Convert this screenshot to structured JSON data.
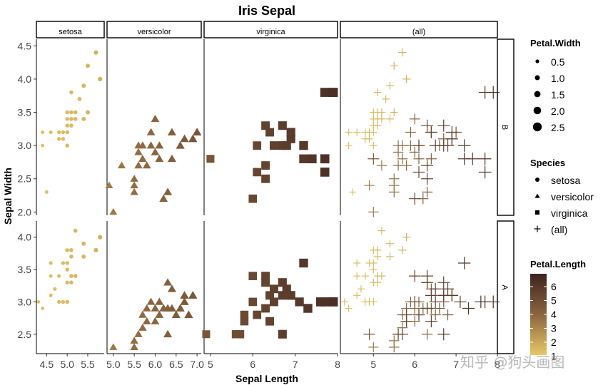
{
  "chart_data": {
    "type": "scatter",
    "title": "Iris Sepal",
    "xlabel": "Sepal Length",
    "ylabel": "Sepal Width",
    "facet_columns": [
      "setosa",
      "versicolor",
      "virginica",
      "(all)"
    ],
    "facet_rows": [
      "B",
      "A"
    ],
    "panels": [
      {
        "col": "setosa",
        "xlim": [
          4.25,
          5.9
        ],
        "xticks": [
          4.5,
          5.0,
          5.5
        ],
        "ytop": [
          2.0,
          4.5
        ],
        "ybottom": [
          2.2,
          4.2
        ]
      },
      {
        "col": "versicolor",
        "xlim": [
          4.85,
          7.1
        ],
        "xticks": [
          5.0,
          5.5,
          6.0,
          6.5,
          7.0
        ]
      },
      {
        "col": "virginica",
        "xlim": [
          4.85,
          8.0
        ],
        "xticks": [
          5,
          6,
          7,
          8
        ]
      },
      {
        "col": "(all)",
        "xlim": [
          4.2,
          8.0
        ],
        "xticks": [
          5,
          6,
          7,
          8
        ]
      }
    ],
    "row_y": {
      "B": {
        "ylim": [
          1.95,
          4.6
        ],
        "yticks": [
          2.0,
          2.5,
          3.0,
          3.5,
          4.0,
          4.5
        ]
      },
      "A": {
        "ylim": [
          2.2,
          4.25
        ],
        "yticks": [
          2.5,
          3.0,
          3.5,
          4.0
        ]
      }
    },
    "series": [
      {
        "name": "setosa",
        "row": "B",
        "points": [
          [
            4.4,
            3.0
          ],
          [
            4.5,
            2.3
          ],
          [
            4.4,
            3.2
          ],
          [
            4.6,
            3.2
          ],
          [
            4.8,
            3.1
          ],
          [
            4.8,
            3.2
          ],
          [
            4.9,
            3.1
          ],
          [
            4.9,
            3.2
          ],
          [
            5.0,
            3.0
          ],
          [
            5.0,
            3.3
          ],
          [
            5.0,
            3.4
          ],
          [
            5.0,
            3.5
          ],
          [
            5.0,
            3.2
          ],
          [
            5.1,
            3.3
          ],
          [
            5.1,
            3.4
          ],
          [
            5.1,
            3.5
          ],
          [
            5.1,
            3.8
          ],
          [
            5.2,
            3.4
          ],
          [
            5.2,
            3.5
          ],
          [
            5.3,
            3.7
          ],
          [
            5.4,
            3.4
          ],
          [
            5.4,
            3.9
          ],
          [
            5.5,
            3.5
          ],
          [
            5.5,
            4.2
          ],
          [
            5.7,
            4.4
          ],
          [
            5.8,
            4.0
          ]
        ]
      },
      {
        "name": "setosa",
        "row": "A",
        "points": [
          [
            4.3,
            3.0
          ],
          [
            4.4,
            2.9
          ],
          [
            4.6,
            3.1
          ],
          [
            4.6,
            3.4
          ],
          [
            4.6,
            3.6
          ],
          [
            4.7,
            3.2
          ],
          [
            4.8,
            3.0
          ],
          [
            4.8,
            3.4
          ],
          [
            4.9,
            3.0
          ],
          [
            4.9,
            3.6
          ],
          [
            5.0,
            3.0
          ],
          [
            5.0,
            3.3
          ],
          [
            5.0,
            3.5
          ],
          [
            5.0,
            3.6
          ],
          [
            5.0,
            3.8
          ],
          [
            5.1,
            3.3
          ],
          [
            5.1,
            3.4
          ],
          [
            5.1,
            3.7
          ],
          [
            5.1,
            3.8
          ],
          [
            5.2,
            3.4
          ],
          [
            5.2,
            4.1
          ],
          [
            5.4,
            3.7
          ],
          [
            5.4,
            3.9
          ],
          [
            5.7,
            3.8
          ],
          [
            5.8,
            4.0
          ]
        ]
      },
      {
        "name": "versicolor",
        "row": "B",
        "points": [
          [
            4.9,
            2.4
          ],
          [
            5.0,
            2.0
          ],
          [
            5.2,
            2.7
          ],
          [
            5.5,
            2.3
          ],
          [
            5.5,
            2.4
          ],
          [
            5.5,
            2.5
          ],
          [
            5.6,
            2.7
          ],
          [
            5.6,
            2.9
          ],
          [
            5.6,
            3.0
          ],
          [
            5.7,
            2.8
          ],
          [
            5.7,
            3.0
          ],
          [
            5.8,
            2.7
          ],
          [
            5.9,
            3.0
          ],
          [
            5.9,
            3.2
          ],
          [
            6.0,
            2.9
          ],
          [
            6.0,
            3.4
          ],
          [
            6.1,
            2.8
          ],
          [
            6.1,
            3.0
          ],
          [
            6.2,
            2.2
          ],
          [
            6.3,
            2.3
          ],
          [
            6.4,
            2.8
          ],
          [
            6.4,
            3.2
          ],
          [
            6.6,
            3.0
          ],
          [
            6.7,
            3.1
          ],
          [
            6.9,
            3.1
          ],
          [
            7.0,
            3.2
          ]
        ]
      },
      {
        "name": "versicolor",
        "row": "A",
        "points": [
          [
            5.0,
            2.3
          ],
          [
            5.5,
            2.3
          ],
          [
            5.5,
            2.4
          ],
          [
            5.6,
            2.5
          ],
          [
            5.7,
            2.6
          ],
          [
            5.7,
            2.8
          ],
          [
            5.8,
            2.7
          ],
          [
            5.8,
            2.9
          ],
          [
            5.9,
            3.0
          ],
          [
            6.0,
            2.7
          ],
          [
            6.0,
            2.9
          ],
          [
            6.1,
            2.8
          ],
          [
            6.1,
            3.0
          ],
          [
            6.2,
            2.9
          ],
          [
            6.3,
            2.5
          ],
          [
            6.3,
            2.9
          ],
          [
            6.3,
            3.3
          ],
          [
            6.4,
            2.9
          ],
          [
            6.4,
            3.2
          ],
          [
            6.5,
            2.8
          ],
          [
            6.6,
            2.9
          ],
          [
            6.7,
            3.0
          ],
          [
            6.7,
            3.1
          ],
          [
            6.8,
            2.8
          ],
          [
            6.9,
            3.1
          ]
        ]
      },
      {
        "name": "virginica",
        "row": "B",
        "points": [
          [
            6.0,
            2.2
          ],
          [
            6.1,
            2.6
          ],
          [
            6.1,
            3.0
          ],
          [
            6.3,
            2.5
          ],
          [
            6.3,
            2.7
          ],
          [
            6.3,
            3.3
          ],
          [
            6.4,
            3.2
          ],
          [
            6.5,
            3.0
          ],
          [
            6.7,
            3.0
          ],
          [
            6.7,
            3.3
          ],
          [
            6.8,
            3.0
          ],
          [
            6.9,
            3.1
          ],
          [
            6.9,
            3.2
          ],
          [
            7.2,
            2.8
          ],
          [
            7.2,
            3.0
          ],
          [
            7.4,
            2.8
          ],
          [
            7.7,
            2.6
          ],
          [
            7.7,
            2.8
          ],
          [
            7.7,
            3.8
          ],
          [
            7.9,
            3.8
          ],
          [
            5.0,
            2.8
          ]
        ]
      },
      {
        "name": "virginica",
        "row": "A",
        "points": [
          [
            4.9,
            2.5
          ],
          [
            5.6,
            2.5
          ],
          [
            5.8,
            2.7
          ],
          [
            5.8,
            2.8
          ],
          [
            6.0,
            3.0
          ],
          [
            6.1,
            2.8
          ],
          [
            6.3,
            2.9
          ],
          [
            6.3,
            3.3
          ],
          [
            6.3,
            3.4
          ],
          [
            6.4,
            2.7
          ],
          [
            6.4,
            3.1
          ],
          [
            6.5,
            3.0
          ],
          [
            6.5,
            3.2
          ],
          [
            6.7,
            2.5
          ],
          [
            6.7,
            3.1
          ],
          [
            6.7,
            3.3
          ],
          [
            6.8,
            3.2
          ],
          [
            6.9,
            3.1
          ],
          [
            7.1,
            3.0
          ],
          [
            7.2,
            3.6
          ],
          [
            7.3,
            2.9
          ],
          [
            7.6,
            3.0
          ],
          [
            7.7,
            3.0
          ],
          [
            7.9,
            3.0
          ],
          [
            5.7,
            2.5
          ],
          [
            6.0,
            3.4
          ]
        ]
      }
    ],
    "legend": {
      "position": "right",
      "size_title": "Petal.Width",
      "size_breaks": [
        "0.5",
        "1.0",
        "1.5",
        "2.0",
        "2.5"
      ],
      "shape_title": "Species",
      "shape_labels": [
        "setosa",
        "versicolor",
        "virginica",
        "(all)"
      ],
      "color_title": "Petal.Length",
      "color_breaks": [
        "6",
        "5",
        "4",
        "3",
        "2",
        "1"
      ],
      "color_low": "#e7c866",
      "color_high": "#3d2320"
    }
  },
  "watermark": "知乎 @狗头画图"
}
